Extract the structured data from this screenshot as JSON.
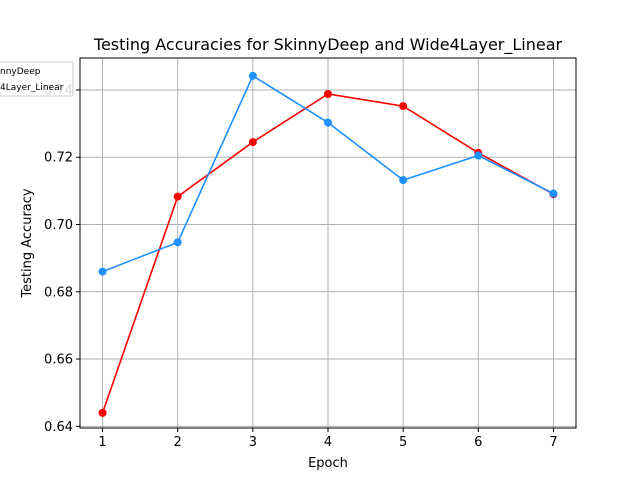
{
  "chart_data": {
    "type": "line",
    "title": "Testing Accuracies for SkinnyDeep and Wide4Layer_Linear",
    "xlabel": "Epoch",
    "ylabel": "Testing Accuracy",
    "x": [
      1,
      2,
      3,
      4,
      5,
      6,
      7
    ],
    "xticks": [
      "1",
      "2",
      "3",
      "4",
      "5",
      "6",
      "7"
    ],
    "yticks": [
      "0.64",
      "0.66",
      "0.68",
      "0.70",
      "0.72",
      "0.74"
    ],
    "xlim": [
      0.7,
      7.3
    ],
    "ylim": [
      0.6395,
      0.7495
    ],
    "grid": true,
    "legend_placement": "top-left (partially clipped)",
    "legend_visible_text": [
      "nnyDeep",
      "4Layer_Linear"
    ],
    "series": [
      {
        "name": "SkinnyDeep",
        "color": "#ff0000",
        "marker": "circle",
        "values": [
          0.644,
          0.7083,
          0.7245,
          0.7388,
          0.7352,
          0.7213,
          0.709
        ]
      },
      {
        "name": "Wide4Layer_Linear",
        "color": "#1e90ff",
        "marker": "circle",
        "values": [
          0.686,
          0.6947,
          0.7442,
          0.7303,
          0.7132,
          0.7205,
          0.7092
        ]
      }
    ]
  }
}
